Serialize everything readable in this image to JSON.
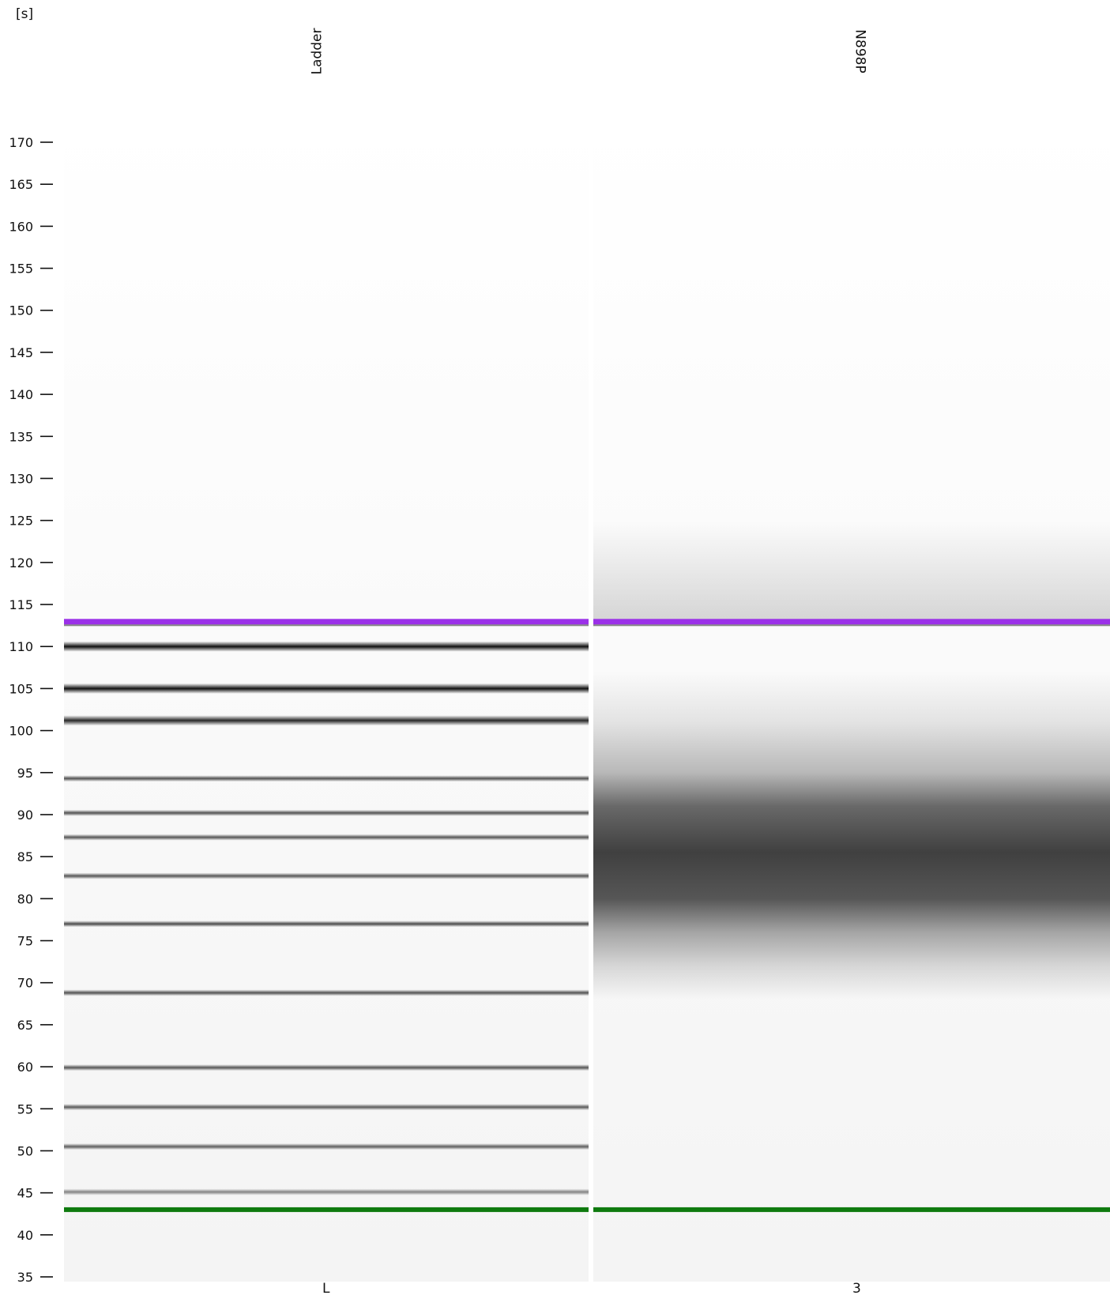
{
  "chart_data": {
    "type": "gel",
    "y_unit": "[s]",
    "ylim": [
      35,
      170
    ],
    "y_ticks": [
      35,
      40,
      45,
      50,
      55,
      60,
      65,
      70,
      75,
      80,
      85,
      90,
      95,
      100,
      105,
      110,
      115,
      120,
      125,
      130,
      135,
      140,
      145,
      150,
      155,
      160,
      165,
      170
    ],
    "lanes": [
      {
        "name": "Ladder",
        "id": "L",
        "upper_marker": 113.0,
        "lower_marker": 43.0,
        "bands": [
          {
            "y": 110.0,
            "intensity": 1.0
          },
          {
            "y": 105.0,
            "intensity": 1.0
          },
          {
            "y": 101.2,
            "intensity": 0.9
          },
          {
            "y": 94.3,
            "intensity": 0.72
          },
          {
            "y": 90.2,
            "intensity": 0.72
          },
          {
            "y": 87.3,
            "intensity": 0.7
          },
          {
            "y": 82.7,
            "intensity": 0.7
          },
          {
            "y": 77.0,
            "intensity": 0.75
          },
          {
            "y": 68.8,
            "intensity": 0.72
          },
          {
            "y": 59.9,
            "intensity": 0.7
          },
          {
            "y": 55.2,
            "intensity": 0.68
          },
          {
            "y": 50.5,
            "intensity": 0.66
          },
          {
            "y": 45.1,
            "intensity": 0.5
          }
        ]
      },
      {
        "name": "N898P",
        "id": "3",
        "upper_marker": 113.0,
        "lower_marker": 43.0,
        "smear": {
          "from": 80.0,
          "to": 91.0,
          "peak": 85.5,
          "intensity": 0.84
        }
      }
    ],
    "colors": {
      "upper_marker": "#9b30e8",
      "lower_marker": "#0e7a0e",
      "band": "#111111",
      "smear": "#404040",
      "lane_background": "#f4f4f4"
    }
  }
}
